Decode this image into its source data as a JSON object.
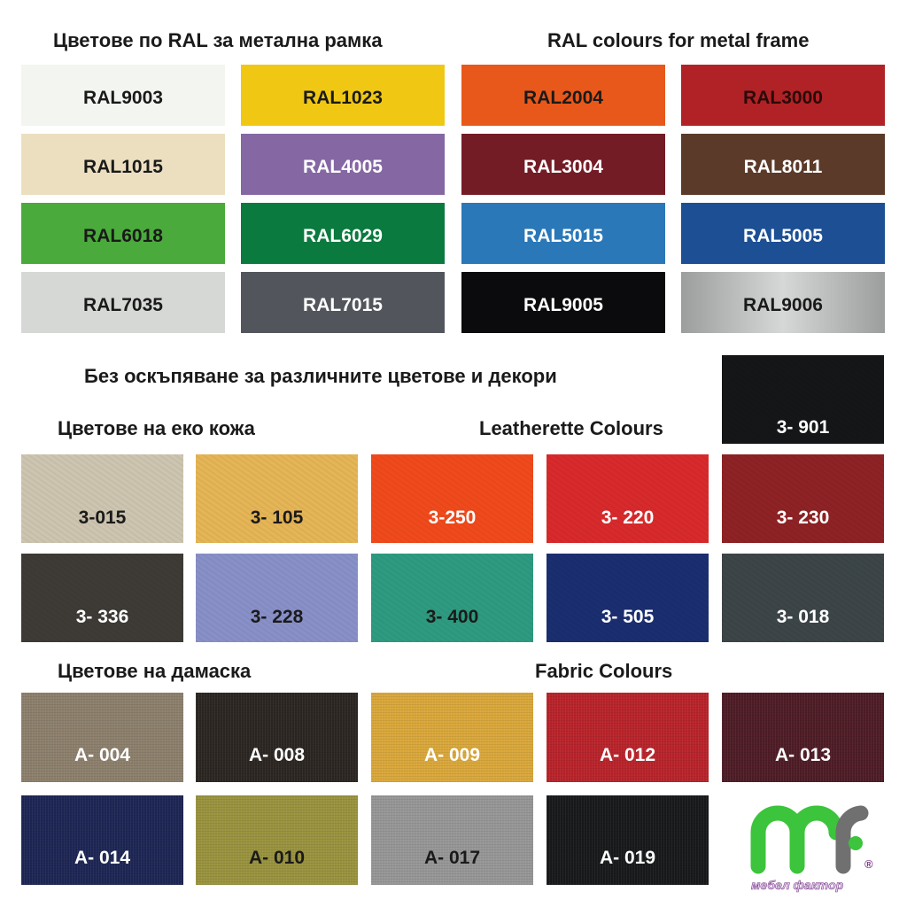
{
  "headings": {
    "ral_bg": "Цветове по RAL за метална рамка",
    "ral_en": "RAL colours for metal frame",
    "no_extra": "Без оскъпяване за различните цветове и декори",
    "leather_bg": "Цветове на еко кожа",
    "leather_en": "Leatherette Colours",
    "fabric_bg": "Цветове на дамаска",
    "fabric_en": "Fabric Colours"
  },
  "ral": [
    {
      "code": "RAL9003",
      "color": "#f3f5f0",
      "text": "#1a1a1a"
    },
    {
      "code": "RAL1023",
      "color": "#f0c814",
      "text": "#1a1a1a"
    },
    {
      "code": "RAL2004",
      "color": "#e8581a",
      "text": "#1a1a1a"
    },
    {
      "code": "RAL3000",
      "color": "#b02225",
      "text": "#2a0a0a"
    },
    {
      "code": "RAL1015",
      "color": "#ebdfc0",
      "text": "#1a1a1a"
    },
    {
      "code": "RAL4005",
      "color": "#8467a3",
      "text": "#ffffff"
    },
    {
      "code": "RAL3004",
      "color": "#741c26",
      "text": "#ffffff"
    },
    {
      "code": "RAL8011",
      "color": "#5b3a29",
      "text": "#ffffff"
    },
    {
      "code": "RAL6018",
      "color": "#4aaa3c",
      "text": "#1a1a1a"
    },
    {
      "code": "RAL6029",
      "color": "#0a7a3e",
      "text": "#ffffff"
    },
    {
      "code": "RAL5015",
      "color": "#2a78b8",
      "text": "#ffffff"
    },
    {
      "code": "RAL5005",
      "color": "#1c4f94",
      "text": "#ffffff"
    },
    {
      "code": "RAL7035",
      "color": "#d5d8d5",
      "text": "#1a1a1a"
    },
    {
      "code": "RAL7015",
      "color": "#52565c",
      "text": "#ffffff"
    },
    {
      "code": "RAL9005",
      "color": "#0b0b0d",
      "text": "#ffffff"
    },
    {
      "code": "RAL9006",
      "color": "#a9abab",
      "text": "#1a1a1a"
    }
  ],
  "leather_top": {
    "code": "3- 901",
    "color": "#141618",
    "text": "#ffffff"
  },
  "leather": [
    {
      "code": "3-015",
      "color": "#cdc5b0",
      "text": "#1a1a1a"
    },
    {
      "code": "3- 105",
      "color": "#e5b556",
      "text": "#1a1a1a"
    },
    {
      "code": "3-250",
      "color": "#f04a1c",
      "text": "#ffffff"
    },
    {
      "code": "3- 220",
      "color": "#d82a2c",
      "text": "#ffffff"
    },
    {
      "code": "3- 230",
      "color": "#8e2224",
      "text": "#ffffff"
    },
    {
      "code": "3- 336",
      "color": "#3e3a36",
      "text": "#ffffff"
    },
    {
      "code": "3- 228",
      "color": "#8890c8",
      "text": "#1a1a1a"
    },
    {
      "code": "3- 400",
      "color": "#2e9b80",
      "text": "#1a1a1a"
    },
    {
      "code": "3- 505",
      "color": "#1a2e70",
      "text": "#ffffff"
    },
    {
      "code": "3- 018",
      "color": "#3c4548",
      "text": "#ffffff"
    }
  ],
  "fabric": [
    {
      "code": "A- 004",
      "color": "#8c7f6c",
      "text": "#ffffff"
    },
    {
      "code": "A- 008",
      "color": "#2b2621",
      "text": "#ffffff"
    },
    {
      "code": "A- 009",
      "color": "#d9a73a",
      "text": "#ffffff"
    },
    {
      "code": "A- 012",
      "color": "#b8232a",
      "text": "#ffffff"
    },
    {
      "code": "A- 013",
      "color": "#4e1c26",
      "text": "#ffffff"
    },
    {
      "code": "A- 014",
      "color": "#1d2654",
      "text": "#ffffff"
    },
    {
      "code": "A- 010",
      "color": "#99923e",
      "text": "#1a1a1a"
    },
    {
      "code": "A- 017",
      "color": "#969696",
      "text": "#1a1a1a"
    },
    {
      "code": "A- 019",
      "color": "#18191b",
      "text": "#ffffff"
    }
  ],
  "logo": {
    "text": "мебел фактор",
    "green": "#3cc43c",
    "gray": "#707070",
    "purple": "#7a3a8a"
  }
}
